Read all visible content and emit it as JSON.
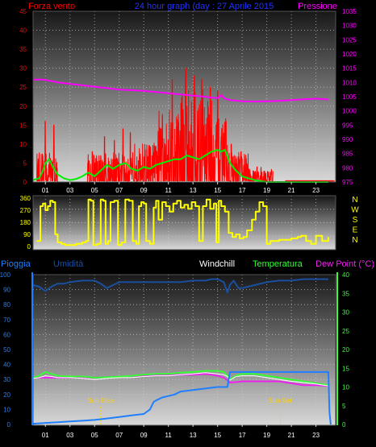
{
  "colors": {
    "wind": "#ff0000",
    "gust": "#00ee00",
    "pressure": "#ff00ff",
    "direction": "#ffff00",
    "rain": "#1e7fff",
    "humidity": "#1a4fa0",
    "windchill": "#ffffff",
    "temperature": "#33ff33",
    "dewpoint": "#ee22ee",
    "sun": "#ffd000",
    "title": "#2233ff"
  },
  "chart_data": [
    {
      "type": "line",
      "title": "24 hour graph (day : 27 Aprile 2015",
      "left_label": "Forza vento",
      "right_label": "Pressione",
      "xlim": [
        0,
        24.6
      ],
      "x_ticks": [
        "01",
        "03",
        "05",
        "07",
        "09",
        "11",
        "13",
        "15",
        "17",
        "19",
        "21",
        "23"
      ],
      "x_tick_positions": [
        1,
        3,
        5,
        7,
        9,
        11,
        13,
        15,
        17,
        19,
        21,
        23
      ],
      "y_left": {
        "min": 0,
        "max": 45,
        "ticks": [
          "0",
          "5",
          "10",
          "15",
          "20",
          "25",
          "30",
          "35",
          "40",
          "45"
        ]
      },
      "y_right": {
        "min": 975,
        "max": 1035,
        "ticks": [
          "975",
          "980",
          "985",
          "990",
          "995",
          "1000",
          "1005",
          "1010",
          "1015",
          "1020",
          "1025",
          "1030",
          "1035"
        ]
      },
      "grid": true,
      "series": [
        {
          "name": "Pressione",
          "axis": "right",
          "x": [
            0,
            0.8,
            1.5,
            2,
            3,
            4,
            5,
            6,
            7,
            8,
            9,
            10,
            11,
            12,
            13,
            14,
            14.5,
            15,
            15.3,
            15.6,
            16,
            16.5,
            17,
            18,
            19,
            20,
            21,
            22,
            23,
            24
          ],
          "y": [
            1011,
            1011,
            1010.5,
            1010,
            1009.5,
            1009,
            1008.5,
            1008,
            1007.5,
            1007.3,
            1007,
            1006.6,
            1006.2,
            1005.8,
            1005.4,
            1005,
            1004.7,
            1004.5,
            1005.5,
            1004.3,
            1003.8,
            1003.6,
            1003.4,
            1003.3,
            1003.4,
            1003.5,
            1003.8,
            1004.1,
            1004.3,
            1004
          ]
        },
        {
          "name": "gust",
          "axis": "left",
          "x": [
            0,
            0.5,
            0.8,
            1,
            1.3,
            1.6,
            2,
            2.5,
            3,
            3.5,
            4,
            4.5,
            5,
            5.5,
            6,
            6.5,
            7,
            7.5,
            8,
            8.5,
            9,
            9.5,
            10,
            10.5,
            11,
            11.5,
            12,
            12.5,
            13,
            13.5,
            14,
            14.5,
            15,
            15.3,
            15.6,
            16,
            16.5,
            17,
            17.5,
            18,
            19,
            20,
            24
          ],
          "y": [
            0.5,
            1,
            3,
            5,
            6,
            4,
            2,
            1,
            0.5,
            0.8,
            1.5,
            2.5,
            1.5,
            3,
            4.5,
            3.5,
            4.5,
            5,
            3.5,
            3,
            4,
            3.5,
            4.5,
            5,
            5.5,
            6,
            6,
            7,
            6.5,
            6,
            7,
            8,
            8.5,
            8,
            8.5,
            5,
            3,
            1.5,
            1,
            0.5,
            0,
            0,
            0
          ]
        },
        {
          "name": "Forza vento",
          "axis": "left",
          "mode": "spiky",
          "segments": [
            [
              0.3,
              2.0,
              6
            ],
            [
              4.4,
              8.0,
              6
            ],
            [
              8.0,
              10.0,
              8
            ],
            [
              10.0,
              12.0,
              15
            ],
            [
              12.0,
              14.6,
              19
            ],
            [
              14.6,
              15.8,
              13
            ],
            [
              15.8,
              17.5,
              6
            ],
            [
              17.5,
              19.5,
              3
            ]
          ],
          "peaks": [
            [
              1.0,
              16
            ],
            [
              1.7,
              15
            ],
            [
              4.8,
              8
            ],
            [
              5.8,
              12
            ],
            [
              6.6,
              11
            ],
            [
              7.3,
              14
            ],
            [
              7.9,
              13
            ],
            [
              10.4,
              14
            ],
            [
              11.3,
              27
            ],
            [
              12.4,
              30
            ],
            [
              13.1,
              28
            ],
            [
              13.7,
              27
            ],
            [
              14.4,
              25
            ],
            [
              15.0,
              24
            ],
            [
              16.1,
              10
            ],
            [
              16.9,
              8
            ],
            [
              18.2,
              4
            ]
          ],
          "floor_line": [
            20.5,
            24.5,
            0.3
          ]
        }
      ]
    },
    {
      "type": "line",
      "right_labels": [
        "N",
        "W",
        "S",
        "E",
        "N"
      ],
      "xlim": [
        0,
        24.6
      ],
      "y": {
        "min": 0,
        "max": 360,
        "ticks": [
          "0",
          "90",
          "180",
          "270",
          "360"
        ]
      },
      "grid": true,
      "series": [
        {
          "name": "direzione",
          "axis": "left",
          "x": [
            0.3,
            0.6,
            0.8,
            1.0,
            1.2,
            1.4,
            1.6,
            1.8,
            2.0,
            2.3,
            2.6,
            3.0,
            3.5,
            4.0,
            4.3,
            4.5,
            4.7,
            4.9,
            5.2,
            5.5,
            5.7,
            5.9,
            6.1,
            6.3,
            6.6,
            6.9,
            7.2,
            7.5,
            7.8,
            8.1,
            8.4,
            8.6,
            8.8,
            9.0,
            9.2,
            9.5,
            9.8,
            10.0,
            10.2,
            10.5,
            10.8,
            11.1,
            11.4,
            11.7,
            12.0,
            12.3,
            12.6,
            12.9,
            13.2,
            13.5,
            13.8,
            14.1,
            14.4,
            14.7,
            14.9,
            15.1,
            15.3,
            15.6,
            15.9,
            16.2,
            16.5,
            16.8,
            17.1,
            17.4,
            17.8,
            18.1,
            18.4,
            18.7,
            19.0,
            19.3,
            19.6,
            20.0,
            21.0,
            21.5,
            21.8,
            22.2,
            22.6,
            23.0,
            23.5,
            24.0
          ],
          "y": [
            40,
            300,
            320,
            270,
            300,
            340,
            330,
            90,
            30,
            20,
            10,
            10,
            20,
            30,
            40,
            350,
            340,
            10,
            20,
            350,
            340,
            20,
            40,
            330,
            340,
            10,
            30,
            350,
            340,
            40,
            20,
            300,
            330,
            320,
            40,
            20,
            290,
            340,
            200,
            330,
            300,
            260,
            320,
            340,
            290,
            310,
            280,
            330,
            300,
            40,
            300,
            350,
            280,
            320,
            30,
            340,
            300,
            260,
            100,
            70,
            90,
            60,
            70,
            120,
            200,
            260,
            330,
            300,
            20,
            40,
            40,
            50,
            60,
            70,
            80,
            40,
            20,
            80,
            40,
            70
          ]
        }
      ]
    },
    {
      "type": "line",
      "header": {
        "left1": "Pioggia",
        "left2": "Umidità",
        "center": "Windchill",
        "center2": "Temperatura",
        "right": "Dew Point (°C)"
      },
      "xlim": [
        0,
        24.6
      ],
      "x_ticks": [
        "01",
        "03",
        "05",
        "07",
        "09",
        "11",
        "13",
        "15",
        "17",
        "19",
        "21",
        "23"
      ],
      "x_tick_positions": [
        1,
        3,
        5,
        7,
        9,
        11,
        13,
        15,
        17,
        19,
        21,
        23
      ],
      "y_left": {
        "min": 0,
        "max": 100,
        "ticks": [
          "0",
          "10",
          "20",
          "30",
          "40",
          "50",
          "60",
          "70",
          "80",
          "90",
          "100"
        ]
      },
      "y_right": {
        "min": 0,
        "max": 40,
        "ticks": [
          "0",
          "5",
          "10",
          "15",
          "20",
          "25",
          "30",
          "35",
          "40"
        ]
      },
      "grid": true,
      "annotations": [
        {
          "label": "Sun Rise",
          "x": 5.5
        },
        {
          "label": "Sun Set",
          "x": 20.1
        }
      ],
      "series": [
        {
          "name": "Umidità",
          "axis": "left",
          "x": [
            0,
            0.5,
            1,
            1.5,
            2,
            2.5,
            3,
            4,
            5,
            5.5,
            6,
            6.5,
            7,
            8,
            9,
            10,
            11,
            12,
            13,
            14,
            14.5,
            15,
            15.5,
            15.8,
            16,
            16.3,
            16.7,
            17,
            18,
            19,
            20,
            21,
            22,
            23,
            24
          ],
          "y": [
            93,
            92,
            89,
            92,
            94,
            94,
            95,
            96,
            96,
            94,
            91,
            93,
            95,
            95,
            95,
            95,
            95,
            95,
            96,
            96,
            97,
            97,
            95,
            88,
            93,
            96,
            91,
            91,
            93,
            95,
            96,
            96,
            97,
            97,
            97
          ]
        },
        {
          "name": "Pioggia",
          "axis": "left",
          "x": [
            0,
            1,
            2,
            3,
            4,
            5,
            5.5,
            6,
            7,
            8,
            9,
            9.5,
            9.8,
            10,
            10.5,
            11,
            11.5,
            12,
            13,
            14,
            14.5,
            15,
            15.5,
            15.8,
            16,
            24,
            24.1,
            24.2
          ],
          "y": [
            0.5,
            1,
            1.5,
            2,
            2.5,
            3,
            3.5,
            4,
            5,
            6,
            7,
            10,
            15,
            16,
            18,
            19,
            20,
            22,
            23,
            24,
            24.5,
            25,
            25,
            25,
            35,
            35,
            8,
            0
          ]
        },
        {
          "name": "Temperatura",
          "axis": "right",
          "x": [
            0,
            0.5,
            1,
            1.5,
            2,
            3,
            4,
            5,
            6,
            7,
            8,
            9,
            10,
            11,
            12,
            13,
            14,
            15,
            15.5,
            15.8,
            16,
            16.5,
            17,
            18,
            19,
            20,
            21,
            22,
            23,
            24
          ],
          "y": [
            12.5,
            13,
            14,
            13.5,
            13,
            12.8,
            12.8,
            12.5,
            12.6,
            12.8,
            13,
            13.3,
            13.5,
            13.5,
            13.8,
            14,
            14.3,
            14.3,
            14,
            13,
            12,
            13,
            13.5,
            13.5,
            13,
            12.5,
            12,
            11.5,
            11,
            10.5
          ]
        },
        {
          "name": "Windchill",
          "axis": "right",
          "x": [
            0,
            0.5,
            1,
            1.5,
            2,
            3,
            4,
            5,
            6,
            7,
            8,
            9,
            10,
            11,
            12,
            13,
            14,
            15,
            15.5,
            15.8,
            16,
            16.5,
            17,
            18,
            19,
            20,
            21,
            22,
            23,
            24
          ],
          "y": [
            12.3,
            12.5,
            13,
            12.8,
            12.5,
            12.5,
            12.3,
            12,
            12.3,
            12.5,
            12.5,
            12.8,
            13,
            13,
            13.3,
            13.5,
            13.8,
            13.5,
            13.3,
            12.8,
            11.8,
            12.8,
            13,
            13,
            12.5,
            12,
            11.5,
            11.2,
            10.8,
            10.3
          ]
        },
        {
          "name": "Dew Point (°C)",
          "axis": "right",
          "x": [
            0,
            1,
            2,
            3,
            4,
            5,
            6,
            7,
            8,
            9,
            10,
            11,
            12,
            13,
            14,
            14.5,
            15,
            15.5,
            15.8,
            16,
            16.5,
            17,
            18,
            19,
            20,
            21,
            22,
            23,
            24
          ],
          "y": [
            12.5,
            12.5,
            12.5,
            12.5,
            12.5,
            12.5,
            12.6,
            12.8,
            13,
            13,
            13.2,
            13.2,
            13.3,
            13.3,
            13.5,
            13.3,
            13,
            12.5,
            11.8,
            11.2,
            11.3,
            11.5,
            11.5,
            11.5,
            11.5,
            11,
            10.5,
            10.5,
            10.3
          ]
        }
      ]
    }
  ]
}
